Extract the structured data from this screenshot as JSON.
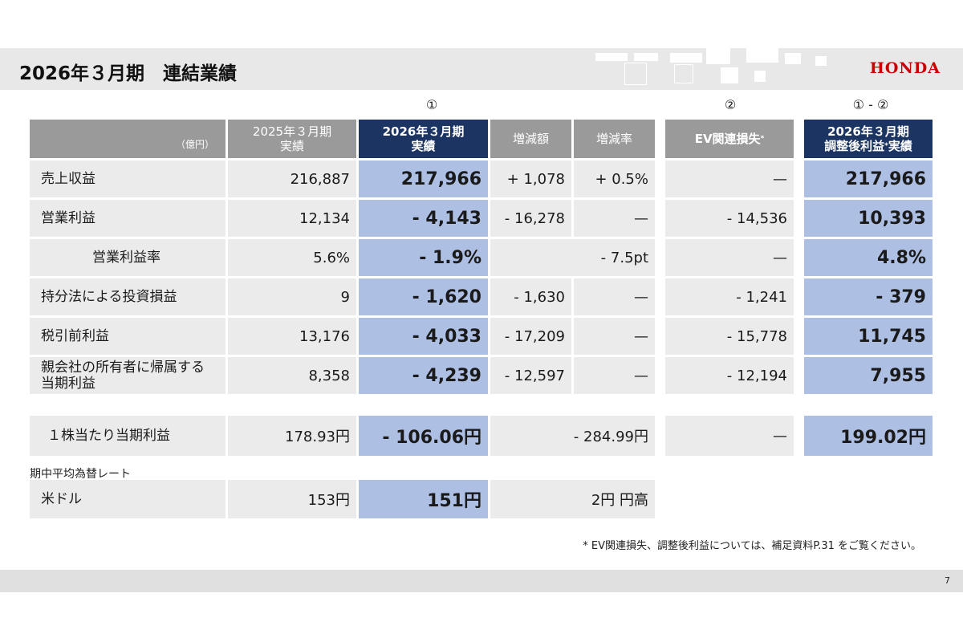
{
  "title": "2026年３月期　連結業績",
  "brand": {
    "name": "HONDA",
    "color": "#cc0000"
  },
  "markers": {
    "col1": "①",
    "col2": "②",
    "col3": "① - ②"
  },
  "headers": {
    "unit": "（億円）",
    "prev_line1": "2025年３月期",
    "prev_line2": "実績",
    "curr_line1": "2026年３月期",
    "curr_line2": "実績",
    "diff": "増減額",
    "rate": "増減率",
    "ev": "EV関連損失",
    "adj_line1": "2026年３月期",
    "adj_line2a": "調整後利益",
    "adj_line2b": "実績",
    "asterisk": "*"
  },
  "rows": [
    {
      "label": "売上収益",
      "prev": "216,887",
      "curr": "217,966",
      "diff": "+ 1,078",
      "rate": "+ 0.5%",
      "ev": "—",
      "adj": "217,966"
    },
    {
      "label": "営業利益",
      "prev": "12,134",
      "curr": "- 4,143",
      "diff": "- 16,278",
      "rate": "—",
      "ev": "- 14,536",
      "adj": "10,393"
    },
    {
      "label": "営業利益率",
      "prev": "5.6%",
      "curr": "- 1.9%",
      "merged": "- 7.5pt",
      "ev": "—",
      "adj": "4.8%"
    },
    {
      "label": "持分法による投資損益",
      "prev": "9",
      "curr": "- 1,620",
      "diff": "- 1,630",
      "rate": "—",
      "ev": "- 1,241",
      "adj": "- 379"
    },
    {
      "label": "税引前利益",
      "prev": "13,176",
      "curr": "- 4,033",
      "diff": "- 17,209",
      "rate": "—",
      "ev": "- 15,778",
      "adj": "11,745"
    },
    {
      "label_line1": "親会社の所有者に帰属する",
      "label_line2": "当期利益",
      "prev": "8,358",
      "curr": "- 4,239",
      "diff": "- 12,597",
      "rate": "—",
      "ev": "- 12,194",
      "adj": "7,955"
    }
  ],
  "eps": {
    "label": "１株当たり当期利益",
    "prev": "178.93円",
    "curr": "- 106.06円",
    "merged": "- 284.99円",
    "ev": "—",
    "adj": "199.02円"
  },
  "fx": {
    "section_label": "期中平均為替レート",
    "label": "米ドル",
    "prev": "153円",
    "curr": "151円",
    "merged": "2円 円高"
  },
  "footnote": "* EV関連損失、調整後利益については、補足資料P.31 をご覧ください。",
  "page_number": "7"
}
